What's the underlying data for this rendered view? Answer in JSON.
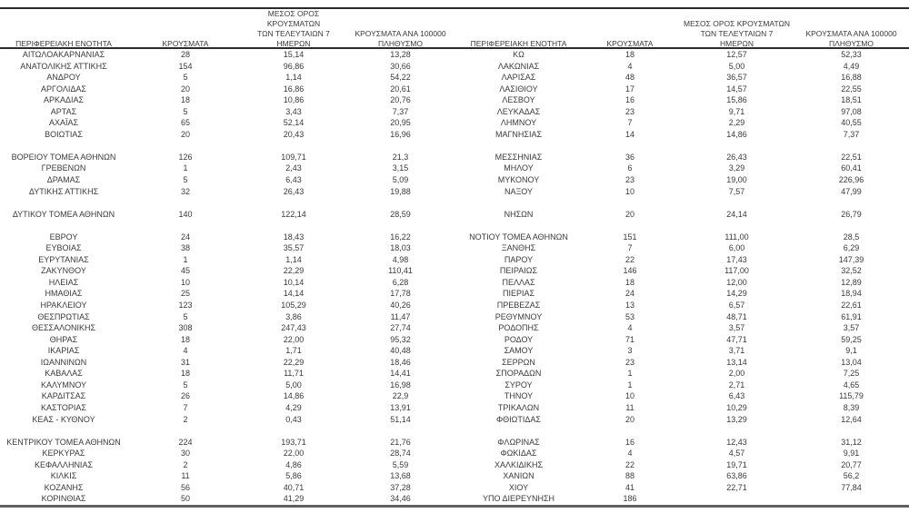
{
  "colors": {
    "background": "#ffffff",
    "text": "#3a3a3a",
    "rule_dark": "#2b2b2b",
    "rule_bottom": "#606060"
  },
  "table": {
    "headers": {
      "region": "ΠΕΡΙΦΕΡΕΙΑΚΗ ΕΝΟΤΗΤΑ",
      "cases": "ΚΡΟΥΣΜΑΤΑ",
      "avg7": "ΜΕΣΟΣ ΟΡΟΣ ΚΡΟΥΣΜΑΤΩΝ\nΤΩΝ ΤΕΛΕΥΤΑΙΩΝ 7\nΗΜΕΡΩΝ",
      "per100k": "ΚΡΟΥΣΜΑΤΑ ΑΝΑ 100000\nΠΛΗΘΥΣΜΟ"
    },
    "columns": [
      "region",
      "cases",
      "avg7",
      "per100k",
      "region",
      "cases",
      "avg7",
      "per100k"
    ],
    "rows": [
      [
        "ΑΙΤΩΛΟΑΚΑΡΝΑΝΙΑΣ",
        "28",
        "15,14",
        "13,28",
        "ΚΩ",
        "18",
        "12,57",
        "52,33"
      ],
      [
        "ΑΝΑΤΟΛΙΚΗΣ ΑΤΤΙΚΗΣ",
        "154",
        "96,86",
        "30,66",
        "ΛΑΚΩΝΙΑΣ",
        "4",
        "5,00",
        "4,49"
      ],
      [
        "ΑΝΔΡΟΥ",
        "5",
        "1,14",
        "54,22",
        "ΛΑΡΙΣΑΣ",
        "48",
        "36,57",
        "16,88"
      ],
      [
        "ΑΡΓΟΛΙΔΑΣ",
        "20",
        "16,86",
        "20,61",
        "ΛΑΣΙΘΙΟΥ",
        "17",
        "14,57",
        "22,55"
      ],
      [
        "ΑΡΚΑΔΙΑΣ",
        "18",
        "10,86",
        "20,76",
        "ΛΕΣΒΟΥ",
        "16",
        "15,86",
        "18,51"
      ],
      [
        "ΑΡΤΑΣ",
        "5",
        "3,43",
        "7,37",
        "ΛΕΥΚΑΔΑΣ",
        "23",
        "9,71",
        "97,08"
      ],
      [
        "ΑΧΑΪΑΣ",
        "65",
        "52,14",
        "20,95",
        "ΛΗΜΝΟΥ",
        "7",
        "2,29",
        "40,55"
      ],
      [
        "ΒΟΙΩΤΙΑΣ",
        "20",
        "20,43",
        "16,96",
        "ΜΑΓΝΗΣΙΑΣ",
        "14",
        "14,86",
        "7,37"
      ],
      null,
      [
        "ΒΟΡΕΙΟΥ ΤΟΜΕΑ ΑΘΗΝΩΝ",
        "126",
        "109,71",
        "21,3",
        "ΜΕΣΣΗΝΙΑΣ",
        "36",
        "26,43",
        "22,51"
      ],
      [
        "ΓΡΕΒΕΝΩΝ",
        "1",
        "2,43",
        "3,15",
        "ΜΗΛΟΥ",
        "6",
        "3,29",
        "60,41"
      ],
      [
        "ΔΡΑΜΑΣ",
        "5",
        "6,43",
        "5,09",
        "ΜΥΚΟΝΟΥ",
        "23",
        "19,00",
        "226,96"
      ],
      [
        "ΔΥΤΙΚΗΣ ΑΤΤΙΚΗΣ",
        "32",
        "26,43",
        "19,88",
        "ΝΑΞΟΥ",
        "10",
        "7,57",
        "47,99"
      ],
      null,
      [
        "ΔΥΤΙΚΟΥ ΤΟΜΕΑ ΑΘΗΝΩΝ",
        "140",
        "122,14",
        "28,59",
        "ΝΗΣΩΝ",
        "20",
        "24,14",
        "26,79"
      ],
      null,
      [
        "ΕΒΡΟΥ",
        "24",
        "18,43",
        "16,22",
        "ΝΟΤΙΟΥ ΤΟΜΕΑ ΑΘΗΝΩΝ",
        "151",
        "111,00",
        "28,5"
      ],
      [
        "ΕΥΒΟΙΑΣ",
        "38",
        "35,57",
        "18,03",
        "ΞΑΝΘΗΣ",
        "7",
        "6,00",
        "6,29"
      ],
      [
        "ΕΥΡΥΤΑΝΙΑΣ",
        "1",
        "1,14",
        "4,98",
        "ΠΑΡΟΥ",
        "22",
        "17,43",
        "147,39"
      ],
      [
        "ΖΑΚΥΝΘΟΥ",
        "45",
        "22,29",
        "110,41",
        "ΠΕΙΡΑΙΩΣ",
        "146",
        "117,00",
        "32,52"
      ],
      [
        "ΗΛΕΙΑΣ",
        "10",
        "10,14",
        "6,28",
        "ΠΕΛΛΑΣ",
        "18",
        "12,00",
        "12,89"
      ],
      [
        "ΗΜΑΘΙΑΣ",
        "25",
        "14,14",
        "17,78",
        "ΠΙΕΡΙΑΣ",
        "24",
        "14,29",
        "18,94"
      ],
      [
        "ΗΡΑΚΛΕΙΟΥ",
        "123",
        "105,29",
        "40,26",
        "ΠΡΕΒΕΖΑΣ",
        "13",
        "6,57",
        "22,61"
      ],
      [
        "ΘΕΣΠΡΩΤΙΑΣ",
        "5",
        "3,86",
        "11,47",
        "ΡΕΘΥΜΝΟΥ",
        "53",
        "48,71",
        "61,91"
      ],
      [
        "ΘΕΣΣΑΛΟΝΙΚΗΣ",
        "308",
        "247,43",
        "27,74",
        "ΡΟΔΟΠΗΣ",
        "4",
        "3,57",
        "3,57"
      ],
      [
        "ΘΗΡΑΣ",
        "18",
        "22,00",
        "95,32",
        "ΡΟΔΟΥ",
        "71",
        "47,71",
        "59,25"
      ],
      [
        "ΙΚΑΡΙΑΣ",
        "4",
        "1,71",
        "40,48",
        "ΣΑΜΟΥ",
        "3",
        "3,71",
        "9,1"
      ],
      [
        "ΙΩΑΝΝΙΝΩΝ",
        "31",
        "22,29",
        "18,46",
        "ΣΕΡΡΩΝ",
        "23",
        "13,14",
        "13,04"
      ],
      [
        "ΚΑΒΑΛΑΣ",
        "18",
        "11,71",
        "14,41",
        "ΣΠΟΡΑΔΩΝ",
        "1",
        "2,00",
        "7,25"
      ],
      [
        "ΚΑΛΥΜΝΟΥ",
        "5",
        "5,00",
        "16,98",
        "ΣΥΡΟΥ",
        "1",
        "2,71",
        "4,65"
      ],
      [
        "ΚΑΡΔΙΤΣΑΣ",
        "26",
        "14,86",
        "22,9",
        "ΤΗΝΟΥ",
        "10",
        "6,43",
        "115,79"
      ],
      [
        "ΚΑΣΤΟΡΙΑΣ",
        "7",
        "4,29",
        "13,91",
        "ΤΡΙΚΑΛΩΝ",
        "11",
        "10,29",
        "8,39"
      ],
      [
        "ΚΕΑΣ - ΚΥΘΝΟΥ",
        "2",
        "0,43",
        "51,14",
        "ΦΘΙΩΤΙΔΑΣ",
        "20",
        "13,29",
        "12,64"
      ],
      null,
      [
        "ΚΕΝΤΡΙΚΟΥ ΤΟΜΕΑ ΑΘΗΝΩΝ",
        "224",
        "193,71",
        "21,76",
        "ΦΛΩΡΙΝΑΣ",
        "16",
        "12,43",
        "31,12"
      ],
      [
        "ΚΕΡΚΥΡΑΣ",
        "30",
        "22,00",
        "28,74",
        "ΦΩΚΙΔΑΣ",
        "4",
        "4,57",
        "9,91"
      ],
      [
        "ΚΕΦΑΛΛΗΝΙΑΣ",
        "2",
        "4,86",
        "5,59",
        "ΧΑΛΚΙΔΙΚΗΣ",
        "22",
        "19,71",
        "20,77"
      ],
      [
        "ΚΙΛΚΙΣ",
        "11",
        "5,86",
        "13,68",
        "ΧΑΝΙΩΝ",
        "88",
        "63,86",
        "56,2"
      ],
      [
        "ΚΟΖΑΝΗΣ",
        "56",
        "40,71",
        "37,28",
        "ΧΙΟΥ",
        "41",
        "22,71",
        "77,84"
      ],
      [
        "ΚΟΡΙΝΘΙΑΣ",
        "50",
        "41,29",
        "34,46",
        "ΥΠΟ ΔΙΕΡΕΥΝΗΣΗ",
        "186",
        "",
        ""
      ]
    ]
  }
}
